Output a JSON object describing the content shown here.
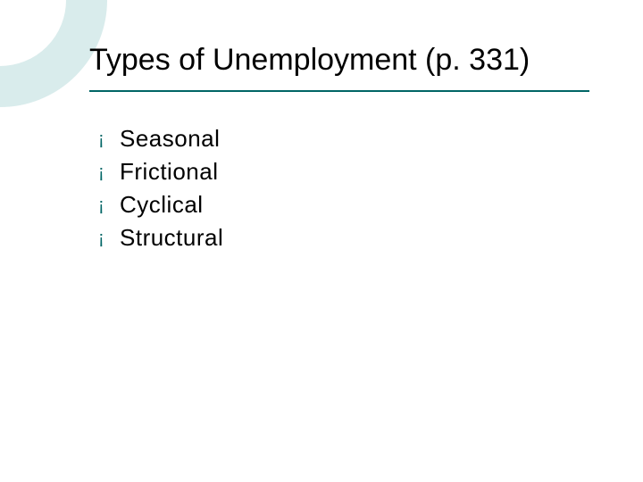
{
  "slide": {
    "title": "Types of Unemployment (p. 331)",
    "title_color": "#000000",
    "title_fontsize": 34,
    "underline_color": "#006666",
    "underline_width": 560,
    "corner_arc_color": "rgba(0,128,128,0.15)",
    "background_color": "#ffffff",
    "bullets": [
      {
        "symbol": "¡",
        "text": "Seasonal"
      },
      {
        "symbol": "¡",
        "text": "Frictional"
      },
      {
        "symbol": "¡",
        "text": "Cyclical"
      },
      {
        "symbol": "¡",
        "text": "Structural"
      }
    ],
    "bullet_marker_color": "#006666",
    "item_text_color": "#000000",
    "item_fontsize": 26
  }
}
